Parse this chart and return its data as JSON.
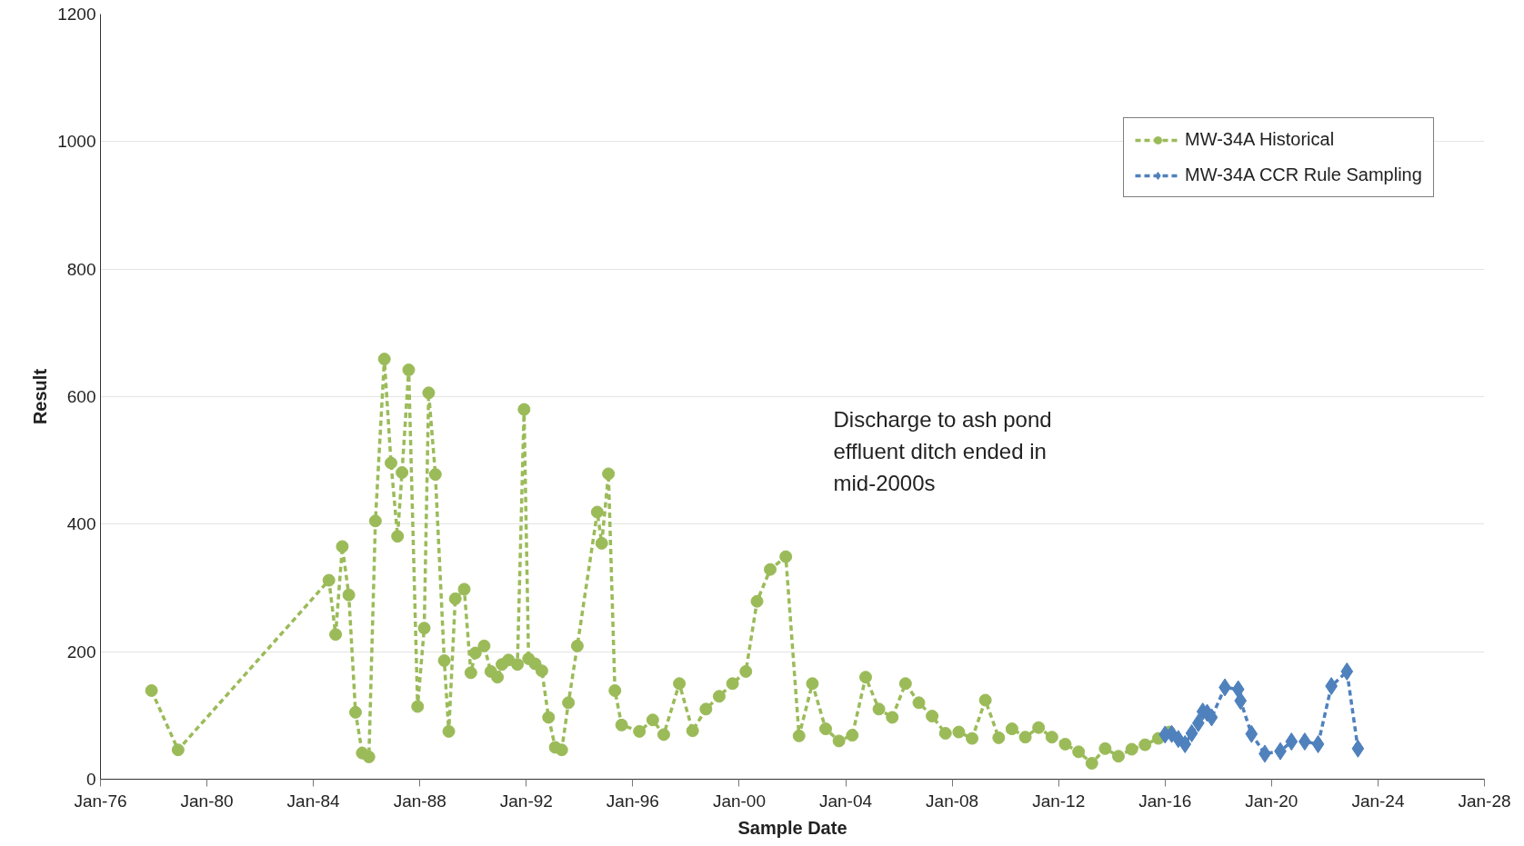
{
  "chart_data": {
    "type": "line",
    "xlabel": "Sample Date",
    "ylabel": "Result",
    "annotations": [
      "Discharge to ash pond effluent ditch ended in mid-2000s"
    ],
    "xlim": [
      "1976-01",
      "2028-01"
    ],
    "xticks": [
      {
        "value": "1976-01",
        "label": "Jan-76"
      },
      {
        "value": "1980-01",
        "label": "Jan-80"
      },
      {
        "value": "1984-01",
        "label": "Jan-84"
      },
      {
        "value": "1988-01",
        "label": "Jan-88"
      },
      {
        "value": "1992-01",
        "label": "Jan-92"
      },
      {
        "value": "1996-01",
        "label": "Jan-96"
      },
      {
        "value": "2000-01",
        "label": "Jan-00"
      },
      {
        "value": "2004-01",
        "label": "Jan-04"
      },
      {
        "value": "2008-01",
        "label": "Jan-08"
      },
      {
        "value": "2012-01",
        "label": "Jan-12"
      },
      {
        "value": "2016-01",
        "label": "Jan-16"
      },
      {
        "value": "2020-01",
        "label": "Jan-20"
      },
      {
        "value": "2024-01",
        "label": "Jan-24"
      },
      {
        "value": "2028-01",
        "label": "Jan-28"
      }
    ],
    "ylim": [
      0,
      1200
    ],
    "yticks": [
      0,
      200,
      400,
      600,
      800,
      1000,
      1200
    ],
    "grid": "y",
    "legend": "top right",
    "line_style": "dashed",
    "series": [
      {
        "name": "MW-34A Historical",
        "color": "#9bbb59",
        "marker": "circle",
        "x": [
          "1977-12",
          "1978-12",
          "1984-08",
          "1984-11",
          "1985-02",
          "1985-05",
          "1985-08",
          "1985-11",
          "1986-02",
          "1986-05",
          "1986-09",
          "1986-12",
          "1987-03",
          "1987-05",
          "1987-08",
          "1987-12",
          "1988-03",
          "1988-05",
          "1988-08",
          "1988-12",
          "1989-02",
          "1989-05",
          "1989-09",
          "1989-12",
          "1990-02",
          "1990-06",
          "1990-09",
          "1990-12",
          "1991-02",
          "1991-05",
          "1991-09",
          "1991-12",
          "1992-02",
          "1992-05",
          "1992-08",
          "1992-11",
          "1993-02",
          "1993-05",
          "1993-08",
          "1993-12",
          "1994-09",
          "1994-11",
          "1995-02",
          "1995-05",
          "1995-08",
          "1996-04",
          "1996-10",
          "1997-03",
          "1997-10",
          "1998-04",
          "1998-10",
          "1999-04",
          "1999-10",
          "2000-04",
          "2000-09",
          "2001-03",
          "2001-10",
          "2002-04",
          "2002-10",
          "2003-04",
          "2003-10",
          "2004-04",
          "2004-10",
          "2005-04",
          "2005-10",
          "2006-04",
          "2006-10",
          "2007-04",
          "2007-10",
          "2008-04",
          "2008-10",
          "2009-04",
          "2009-10",
          "2010-04",
          "2010-10",
          "2011-04",
          "2011-10",
          "2012-04",
          "2012-10",
          "2013-04",
          "2013-10",
          "2014-04",
          "2014-10",
          "2015-04",
          "2015-10",
          "2016-03"
        ],
        "values": [
          139,
          46,
          312,
          227,
          365,
          289,
          105,
          41,
          35,
          405,
          659,
          496,
          381,
          481,
          642,
          114,
          237,
          606,
          478,
          186,
          75,
          283,
          298,
          167,
          198,
          209,
          169,
          160,
          180,
          187,
          180,
          580,
          189,
          181,
          170,
          97,
          50,
          46,
          120,
          209,
          419,
          370,
          479,
          139,
          85,
          75,
          93,
          70,
          150,
          76,
          110,
          130,
          150,
          169,
          279,
          329,
          349,
          68,
          150,
          79,
          60,
          69,
          160,
          110,
          97,
          150,
          120,
          99,
          72,
          74,
          64,
          124,
          65,
          79,
          66,
          81,
          66,
          55,
          43,
          25,
          48,
          36,
          47,
          54,
          64,
          74
        ]
      },
      {
        "name": "MW-34A CCR Rule Sampling",
        "color": "#4f81bd",
        "marker": "diamond",
        "x": [
          "2016-01",
          "2016-04",
          "2016-07",
          "2016-10",
          "2017-01",
          "2017-04",
          "2017-06",
          "2017-08",
          "2017-10",
          "2018-04",
          "2018-10",
          "2018-11",
          "2019-04",
          "2019-10",
          "2020-05",
          "2020-10",
          "2021-04",
          "2021-10",
          "2022-04",
          "2022-11",
          "2023-04"
        ],
        "values": [
          70,
          71,
          63,
          55,
          72,
          88,
          106,
          104,
          97,
          144,
          141,
          123,
          71,
          40,
          44,
          59,
          59,
          55,
          146,
          169,
          48
        ]
      }
    ]
  }
}
